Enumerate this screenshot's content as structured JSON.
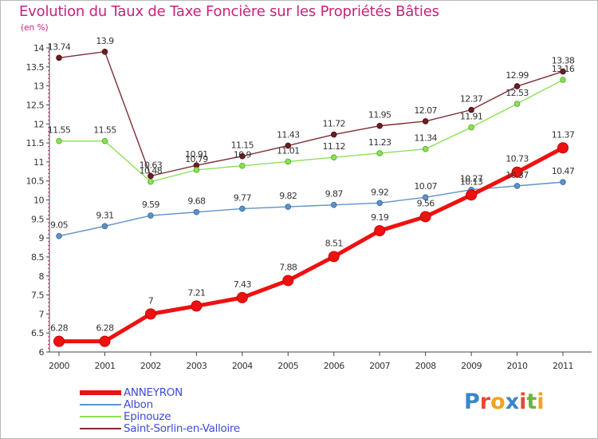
{
  "chart_data": {
    "type": "line",
    "title": "Evolution du Taux de Taxe Foncière sur les Propriétés Bâties",
    "ylabel": "(en %)",
    "xlabel": "",
    "x": [
      "2000",
      "2001",
      "2002",
      "2003",
      "2004",
      "2005",
      "2006",
      "2007",
      "2008",
      "2009",
      "2010",
      "2011"
    ],
    "ylim": [
      6,
      14
    ],
    "yticks": [
      "6",
      "6.5",
      "7",
      "7.5",
      "8",
      "8.5",
      "9",
      "9.5",
      "10",
      "10.5",
      "11",
      "11.5",
      "12",
      "12.5",
      "13",
      "13.5",
      "14"
    ],
    "series": [
      {
        "name": "ANNEYRON",
        "color": "#ee1111",
        "values": [
          6.28,
          6.28,
          7,
          7.21,
          7.43,
          7.88,
          8.51,
          9.19,
          9.56,
          10.13,
          10.73,
          11.37
        ],
        "labels": [
          "6.28",
          "6.28",
          "7",
          "7.21",
          "7.43",
          "7.88",
          "8.51",
          "9.19",
          "9.56",
          "10.13",
          "10.73",
          "11.37"
        ]
      },
      {
        "name": "Albon",
        "color": "#5f93c8",
        "values": [
          9.05,
          9.31,
          9.59,
          9.68,
          9.77,
          9.82,
          9.87,
          9.92,
          10.07,
          10.27,
          10.37,
          10.47
        ],
        "labels": [
          "9.05",
          "9.31",
          "9.59",
          "9.68",
          "9.77",
          "9.82",
          "9.87",
          "9.92",
          "10.07",
          "10.27",
          "10.37",
          "10.47"
        ]
      },
      {
        "name": "Epinouze",
        "color": "#8ee05a",
        "values": [
          11.55,
          11.55,
          10.48,
          10.79,
          10.9,
          11.01,
          11.12,
          11.23,
          11.34,
          11.91,
          12.53,
          13.16
        ],
        "labels": [
          "11.55",
          "11.55",
          "10.48",
          "10.79",
          "10.9",
          "11.01",
          "11.12",
          "11.23",
          "11.34",
          "11.91",
          "12.53",
          "13.16"
        ]
      },
      {
        "name": "Saint-Sorlin-en-Valloire",
        "color": "#7f2d35",
        "values": [
          13.74,
          13.9,
          10.63,
          10.91,
          11.15,
          11.43,
          11.72,
          11.95,
          12.07,
          12.37,
          12.99,
          13.38
        ],
        "labels": [
          "13.74",
          "13.9",
          "10.63",
          "10.91",
          "11.15",
          "11.43",
          "11.72",
          "11.95",
          "12.07",
          "12.37",
          "12.99",
          "13.38"
        ]
      }
    ],
    "legend_position": "bottom-left",
    "grid": false
  },
  "logo": {
    "letters": [
      {
        "ch": "P",
        "color": "#3b86c8"
      },
      {
        "ch": "r",
        "color": "#e64a32"
      },
      {
        "ch": "o",
        "color": "#f2a31c"
      },
      {
        "ch": "x",
        "color": "#3b86c8"
      },
      {
        "ch": "i",
        "color": "#e64a32"
      },
      {
        "ch": "t",
        "color": "#6db33f"
      },
      {
        "ch": "i",
        "color": "#f2a31c"
      }
    ]
  }
}
